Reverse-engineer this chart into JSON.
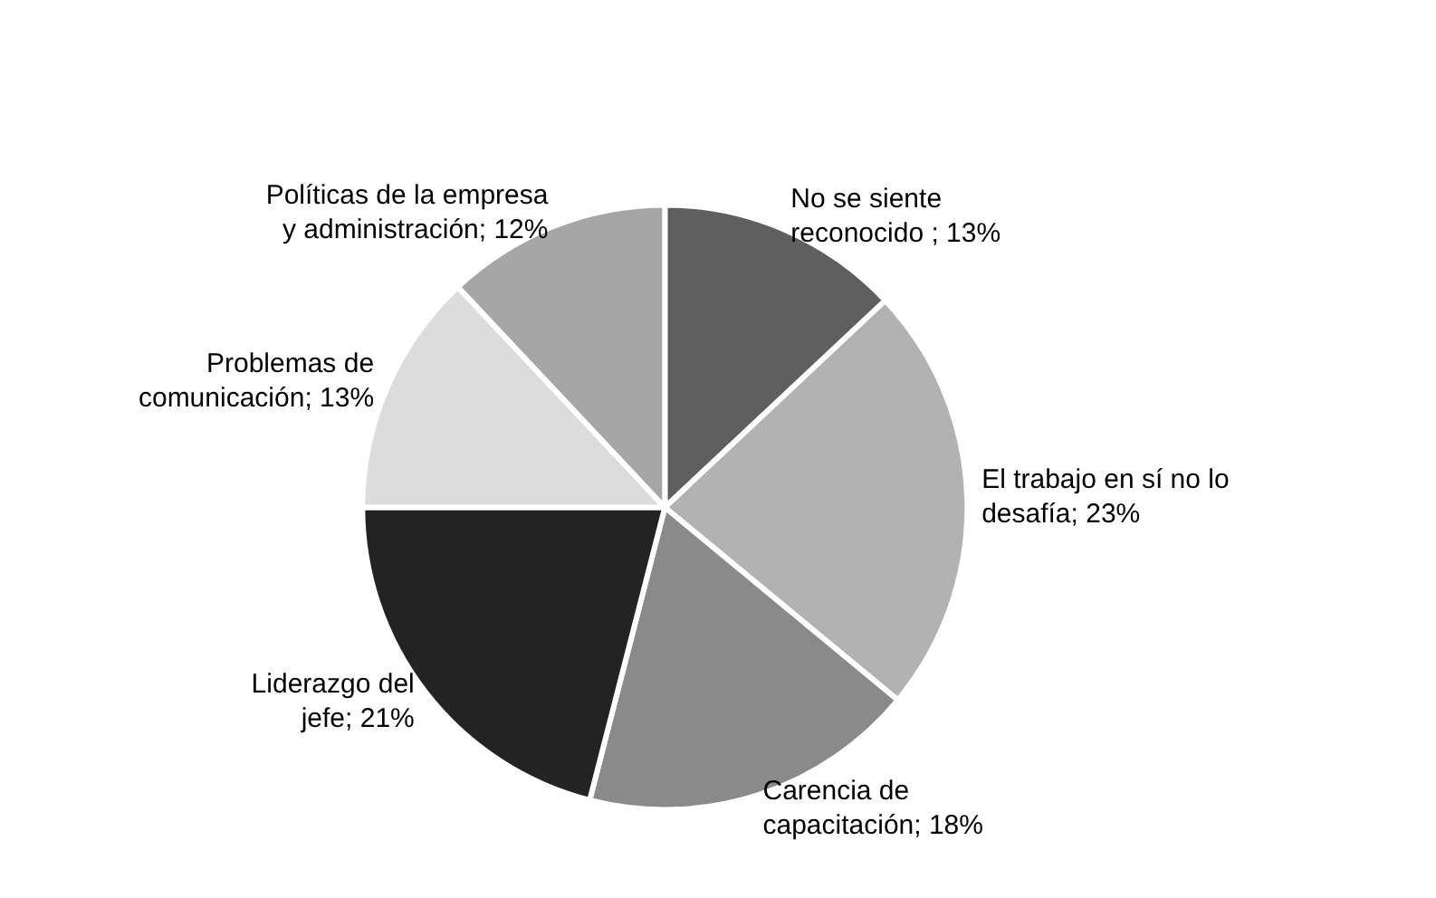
{
  "chart_data": {
    "type": "pie",
    "categories": [
      "No se siente reconocido ",
      "El trabajo en sí no lo desafía",
      "Carencia de capacitación",
      "Liderazgo del jefe",
      "Problemas de comunicación",
      "Políticas de la empresa y administración"
    ],
    "values": [
      13,
      23,
      18,
      21,
      13,
      12
    ],
    "value_labels": [
      "13%",
      "23%",
      "18%",
      "21%",
      "13%",
      "12%"
    ],
    "colors": [
      "#5f5f5f",
      "#b2b2b2",
      "#8a8a8a",
      "#232323",
      "#dcdcdc",
      "#a6a6a6"
    ],
    "legend": false
  }
}
